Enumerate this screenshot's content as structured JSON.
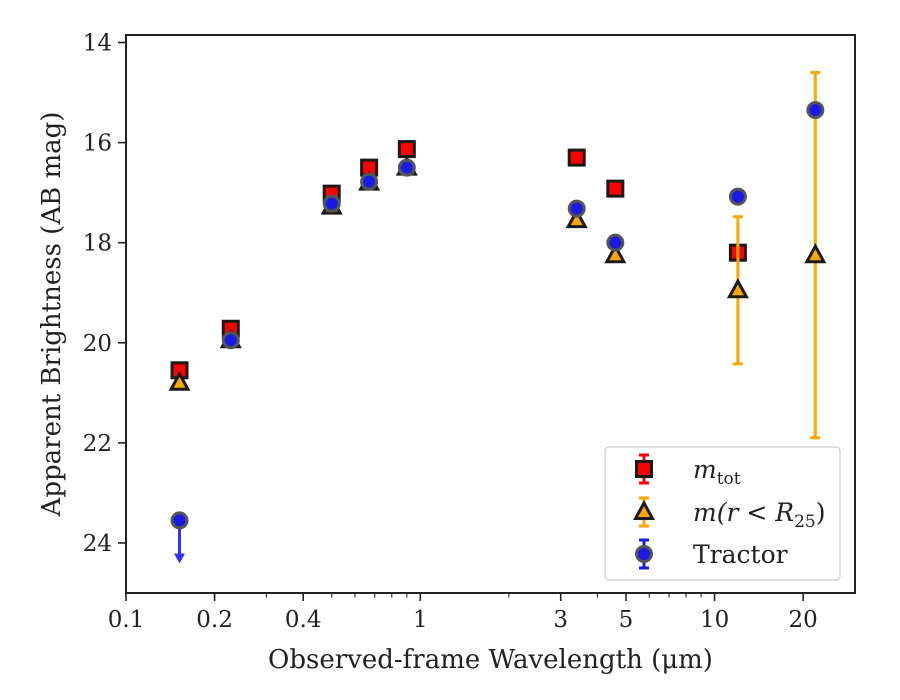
{
  "chart_data": {
    "type": "scatter",
    "xlabel": "Observed-frame Wavelength (μm)",
    "ylabel": "Apparent Brightness (AB mag)",
    "x_scale": "log",
    "xlim": [
      0.1,
      30
    ],
    "ylim": [
      25,
      13.85
    ],
    "y_inverted": true,
    "x_ticks": [
      0.1,
      0.2,
      0.4,
      1,
      3,
      5,
      10,
      20
    ],
    "x_tick_labels": [
      "0.1",
      "0.2",
      "0.4",
      "1",
      "3",
      "5",
      "10",
      "20"
    ],
    "y_ticks": [
      14,
      16,
      18,
      20,
      22,
      24
    ],
    "y_tick_labels": [
      "14",
      "16",
      "18",
      "20",
      "22",
      "24"
    ],
    "legend_position": "lower-right",
    "series": [
      {
        "name": "m_tot",
        "legend_main": "m",
        "legend_sub": "tot",
        "marker": "square",
        "color": "#ff0000",
        "points": [
          {
            "x": 0.152,
            "y": 20.55
          },
          {
            "x": 0.227,
            "y": 19.72
          },
          {
            "x": 0.5,
            "y": 17.02
          },
          {
            "x": 0.67,
            "y": 16.5
          },
          {
            "x": 0.9,
            "y": 16.13
          },
          {
            "x": 3.4,
            "y": 16.3
          },
          {
            "x": 4.6,
            "y": 16.92
          },
          {
            "x": 12.0,
            "y": 18.2
          }
        ]
      },
      {
        "name": "m(r < R25)",
        "legend_main": "m(r < R",
        "legend_sub": "25",
        "legend_tail": ")",
        "marker": "triangle",
        "color": "#ffa500",
        "points": [
          {
            "x": 0.152,
            "y": 20.8
          },
          {
            "x": 0.227,
            "y": 19.95
          },
          {
            "x": 0.5,
            "y": 17.28
          },
          {
            "x": 0.67,
            "y": 16.8
          },
          {
            "x": 0.9,
            "y": 16.5
          },
          {
            "x": 3.4,
            "y": 17.55
          },
          {
            "x": 4.6,
            "y": 18.25
          },
          {
            "x": 12.0,
            "y": 18.95,
            "err_low": 20.42,
            "err_high": 17.48
          },
          {
            "x": 22.0,
            "y": 18.25,
            "err_low": 21.9,
            "err_high": 14.6
          }
        ]
      },
      {
        "name": "Tractor",
        "marker": "circle",
        "color": "#1a1ae6",
        "points": [
          {
            "x": 0.152,
            "y": 23.55,
            "upper_limit": true
          },
          {
            "x": 0.227,
            "y": 19.95
          },
          {
            "x": 0.5,
            "y": 17.22
          },
          {
            "x": 0.67,
            "y": 16.78
          },
          {
            "x": 0.9,
            "y": 16.5
          },
          {
            "x": 3.4,
            "y": 17.32
          },
          {
            "x": 4.6,
            "y": 18.0
          },
          {
            "x": 12.0,
            "y": 17.08
          },
          {
            "x": 22.0,
            "y": 15.35
          }
        ]
      }
    ]
  }
}
